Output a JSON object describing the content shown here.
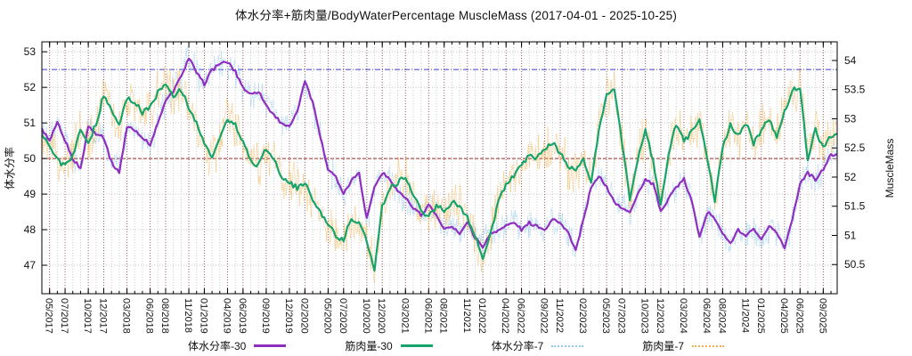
{
  "chart_data": {
    "type": "line",
    "title": "体水分率+筋肉量/BodyWaterPercentage MuscleMass (2017-04-01 - 2025-10-25)",
    "background": "#ffffff",
    "date_range": {
      "start": "2017-04-01",
      "end": "2025-10-25"
    },
    "axes": {
      "left": {
        "label": "体水分率",
        "range": [
          46.2,
          53.28
        ],
        "ticks": [
          47,
          48,
          49,
          50,
          51,
          52,
          53
        ]
      },
      "right": {
        "label": "MuscleMass",
        "range": [
          50.0,
          54.32
        ],
        "ticks": [
          50.5,
          51,
          51.5,
          52,
          52.5,
          53,
          53.5,
          54
        ]
      },
      "x": {
        "start_month": "2017-04",
        "month_span": 102.8,
        "tick_labels": [
          "05/2017",
          "07/2017",
          "10/2017",
          "12/2017",
          "03/2018",
          "06/2018",
          "08/2018",
          "11/2018",
          "01/2019",
          "04/2019",
          "06/2019",
          "09/2019",
          "12/2019",
          "02/2020",
          "05/2020",
          "07/2020",
          "10/2020",
          "12/2020",
          "03/2021",
          "06/2021",
          "08/2021",
          "11/2021",
          "01/2022",
          "04/2022",
          "06/2022",
          "09/2022",
          "11/2022",
          "02/2023",
          "05/2023",
          "07/2023",
          "10/2023",
          "12/2023",
          "03/2024",
          "06/2024",
          "08/2024",
          "11/2024",
          "01/2025",
          "04/2025",
          "06/2025",
          "09/2025"
        ],
        "tick_month_offsets": [
          1,
          3,
          6,
          8,
          11,
          14,
          16,
          19,
          21,
          24,
          26,
          29,
          32,
          34,
          37,
          39,
          42,
          44,
          47,
          50,
          52,
          55,
          57,
          60,
          62,
          65,
          67,
          70,
          73,
          75,
          78,
          80,
          83,
          86,
          88,
          91,
          93,
          96,
          98,
          101
        ]
      }
    },
    "grid": {
      "minor_vertical_color": "#bcbcbc",
      "major_vertical_color": "#8b2222",
      "horizontal_color": "#bcbcbc"
    },
    "reference_lines": [
      {
        "axis": "left",
        "value": 52.5,
        "color": "#2a2ac8",
        "style": "dash-dot"
      },
      {
        "axis": "left",
        "value": 50.0,
        "color": "#991414",
        "style": "dashed"
      }
    ],
    "series": [
      {
        "id": "bodywater-30",
        "name": "体水分率-30",
        "axis": "left",
        "color": "#8f2fc0",
        "style": "solid",
        "width": 2.2,
        "monthly_values": [
          50.8,
          50.5,
          51.0,
          50.5,
          50.0,
          49.7,
          50.9,
          50.7,
          50.6,
          49.9,
          49.6,
          50.9,
          50.8,
          50.6,
          50.4,
          51.0,
          51.6,
          51.9,
          52.3,
          52.85,
          52.4,
          52.1,
          52.5,
          52.65,
          52.7,
          52.45,
          52.0,
          51.8,
          51.9,
          51.5,
          51.2,
          51.0,
          50.9,
          51.3,
          52.2,
          51.6,
          50.6,
          49.7,
          49.5,
          49.0,
          49.4,
          49.6,
          48.3,
          49.2,
          49.6,
          49.4,
          49.1,
          48.9,
          48.6,
          48.4,
          48.7,
          48.4,
          48.0,
          48.1,
          47.9,
          48.2,
          47.8,
          47.5,
          47.9,
          48.0,
          48.1,
          48.2,
          48.0,
          48.2,
          48.1,
          48.0,
          48.3,
          48.2,
          47.9,
          47.4,
          48.3,
          49.2,
          49.5,
          49.2,
          48.8,
          48.6,
          48.5,
          49.0,
          49.4,
          49.3,
          48.5,
          48.9,
          49.2,
          49.4,
          48.8,
          47.8,
          48.5,
          48.3,
          47.9,
          47.6,
          48.0,
          47.8,
          48.0,
          47.7,
          48.1,
          47.9,
          47.5,
          48.3,
          49.3,
          49.6,
          49.4,
          49.7,
          50.1
        ]
      },
      {
        "id": "musclemass-30",
        "name": "筋肉量-30",
        "axis": "right",
        "color": "#17a36a",
        "style": "solid",
        "width": 2.2,
        "monthly_values": [
          52.75,
          52.5,
          52.3,
          52.2,
          52.4,
          52.8,
          52.6,
          52.9,
          53.4,
          53.15,
          52.9,
          53.35,
          53.3,
          53.1,
          53.2,
          53.45,
          53.6,
          53.4,
          53.5,
          53.2,
          52.9,
          52.6,
          52.3,
          52.7,
          53.0,
          52.9,
          52.6,
          52.3,
          52.2,
          52.5,
          52.3,
          52.0,
          51.9,
          51.8,
          51.9,
          51.6,
          51.4,
          51.2,
          51.0,
          50.9,
          51.3,
          51.2,
          50.9,
          50.4,
          51.5,
          51.8,
          51.9,
          52.0,
          51.7,
          51.4,
          51.3,
          51.5,
          51.4,
          51.6,
          51.5,
          51.3,
          51.0,
          50.6,
          51.0,
          51.6,
          51.9,
          52.0,
          52.2,
          52.4,
          52.3,
          52.5,
          52.6,
          52.4,
          52.2,
          52.1,
          52.3,
          51.9,
          52.8,
          53.45,
          53.5,
          52.6,
          51.6,
          52.3,
          52.8,
          52.3,
          51.5,
          52.4,
          52.9,
          52.6,
          52.8,
          53.0,
          52.3,
          51.6,
          52.5,
          52.9,
          52.7,
          52.9,
          52.6,
          52.8,
          53.0,
          52.7,
          53.1,
          53.5,
          53.55,
          52.3,
          52.8,
          52.5,
          52.7
        ]
      },
      {
        "id": "bodywater-7",
        "name": "体水分率-7",
        "axis": "left",
        "color": "#94c9ec",
        "style": "dotted",
        "width": 0.9,
        "follows": "bodywater-30",
        "noise_amplitude": 0.5
      },
      {
        "id": "musclemass-7",
        "name": "筋肉量-7",
        "axis": "right",
        "color": "#f1b352",
        "style": "dotted",
        "width": 0.9,
        "follows": "musclemass-30",
        "noise_amplitude": 0.45
      }
    ],
    "legend": {
      "position": "bottom",
      "entries": [
        "体水分率-30",
        "筋肉量-30",
        "体水分率-7",
        "筋肉量-7"
      ]
    }
  }
}
